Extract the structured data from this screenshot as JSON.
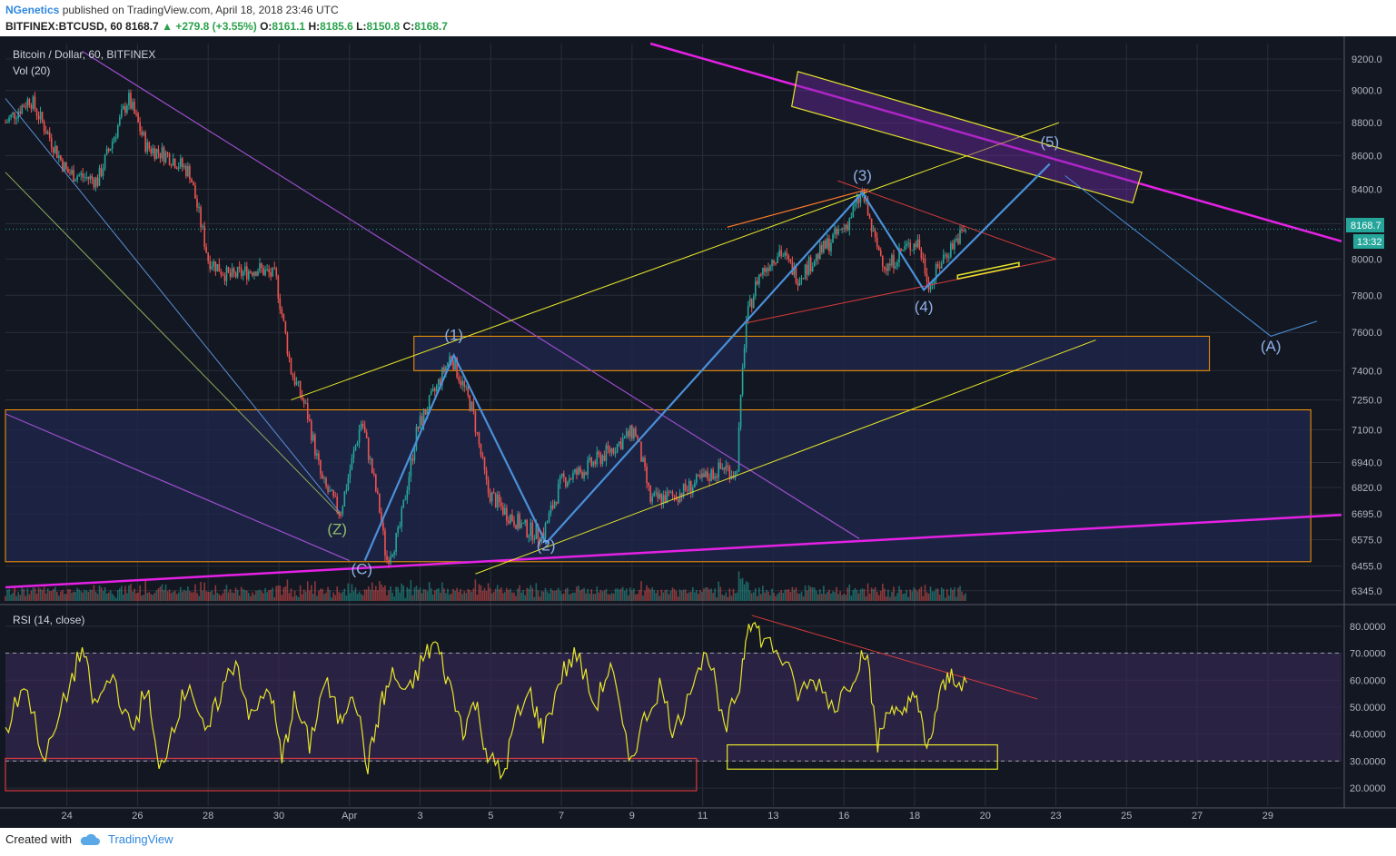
{
  "header": {
    "publisher": "NGenetics",
    "published_text": "published on TradingView.com, April 18, 2018 23:46 UTC",
    "symbol": "BITFINEX:BTCUSD, 60",
    "last": "8168.7",
    "change": "+279.8 (+3.55%)",
    "o_label": "O:",
    "o_value": "8161.1",
    "h_label": "H:",
    "h_value": "8185.6",
    "l_label": "L:",
    "l_value": "8150.8",
    "c_label": "C:",
    "c_value": "8168.7"
  },
  "legend": {
    "main": "Bitcoin / Dollar, 60, BITFINEX",
    "vol": "Vol (20)",
    "rsi": "RSI (14, close)"
  },
  "price_tag": {
    "value": "8168.7",
    "countdown": "13:32"
  },
  "footer": {
    "created_with": "Created with",
    "brand": "TradingView"
  },
  "colors": {
    "background": "#131722",
    "grid": "#2a2e39",
    "candle_up": "#26a69a",
    "candle_down": "#ef5350",
    "wave": "#4a90d9",
    "trend_magenta": "#e621e6",
    "channel_yellow": "#e6e62a",
    "zone_fill": "#1e2648",
    "zone_border": "#ff9800",
    "rsi_line": "#e6e62a",
    "rsi_band": "#3a2a5a",
    "price_tag": "#26a69a"
  },
  "chart_data": [
    {
      "type": "candlestick",
      "title": "Bitcoin / Dollar, 60, BITFINEX",
      "x_ticks": [
        "24",
        "26",
        "28",
        "30",
        "Apr",
        "3",
        "5",
        "7",
        "9",
        "11",
        "13",
        "16",
        "18",
        "20",
        "23",
        "25",
        "27",
        "29"
      ],
      "y_ticks": [
        6345.0,
        6455.0,
        6575.0,
        6695.0,
        6820.0,
        6940.0,
        7100.0,
        7250.0,
        7400.0,
        7600.0,
        7800.0,
        8000.0,
        8200.0,
        8400.0,
        8600.0,
        8800.0,
        9000.0,
        9200.0
      ],
      "y_scale": "log",
      "ylim": [
        6300,
        9300
      ],
      "last_price": 8168.7,
      "price_path": [
        {
          "x": 0.0,
          "y": 8800
        },
        {
          "x": 0.8,
          "y": 8950
        },
        {
          "x": 2.0,
          "y": 8500
        },
        {
          "x": 3.0,
          "y": 8450
        },
        {
          "x": 4.0,
          "y": 8950
        },
        {
          "x": 4.6,
          "y": 8650
        },
        {
          "x": 5.3,
          "y": 8600
        },
        {
          "x": 6.0,
          "y": 8500
        },
        {
          "x": 6.6,
          "y": 8000
        },
        {
          "x": 7.3,
          "y": 7900
        },
        {
          "x": 8.2,
          "y": 7950
        },
        {
          "x": 8.8,
          "y": 7900
        },
        {
          "x": 9.3,
          "y": 7400
        },
        {
          "x": 9.8,
          "y": 7200
        },
        {
          "x": 10.3,
          "y": 6850
        },
        {
          "x": 10.9,
          "y": 6700
        },
        {
          "x": 11.6,
          "y": 7150
        },
        {
          "x": 12.2,
          "y": 6700
        },
        {
          "x": 12.4,
          "y": 6480
        },
        {
          "x": 12.8,
          "y": 6600
        },
        {
          "x": 13.4,
          "y": 7100
        },
        {
          "x": 14.0,
          "y": 7300
        },
        {
          "x": 14.5,
          "y": 7480
        },
        {
          "x": 15.2,
          "y": 7200
        },
        {
          "x": 15.7,
          "y": 6800
        },
        {
          "x": 16.3,
          "y": 6700
        },
        {
          "x": 17.0,
          "y": 6620
        },
        {
          "x": 17.5,
          "y": 6600
        },
        {
          "x": 18.1,
          "y": 6850
        },
        {
          "x": 18.8,
          "y": 6900
        },
        {
          "x": 19.7,
          "y": 7000
        },
        {
          "x": 20.5,
          "y": 7100
        },
        {
          "x": 21.0,
          "y": 6760
        },
        {
          "x": 21.8,
          "y": 6780
        },
        {
          "x": 22.6,
          "y": 6850
        },
        {
          "x": 23.4,
          "y": 6920
        },
        {
          "x": 23.8,
          "y": 6880
        },
        {
          "x": 24.1,
          "y": 7650
        },
        {
          "x": 24.5,
          "y": 7900
        },
        {
          "x": 25.2,
          "y": 8050
        },
        {
          "x": 25.8,
          "y": 7900
        },
        {
          "x": 26.6,
          "y": 8050
        },
        {
          "x": 27.4,
          "y": 8200
        },
        {
          "x": 27.9,
          "y": 8380
        },
        {
          "x": 28.3,
          "y": 8100
        },
        {
          "x": 28.7,
          "y": 7950
        },
        {
          "x": 29.2,
          "y": 8050
        },
        {
          "x": 29.7,
          "y": 8100
        },
        {
          "x": 30.1,
          "y": 7850
        },
        {
          "x": 30.5,
          "y": 8000
        },
        {
          "x": 31.0,
          "y": 8120
        },
        {
          "x": 31.3,
          "y": 8168.7
        }
      ],
      "wave_labels": [
        {
          "label": "(Z)",
          "x": 10.8,
          "y": 6600
        },
        {
          "label": "(C)",
          "x": 11.6,
          "y": 6420
        },
        {
          "label": "(1)",
          "x": 14.6,
          "y": 7560
        },
        {
          "label": "(2)",
          "x": 17.6,
          "y": 6525
        },
        {
          "label": "(3)",
          "x": 27.9,
          "y": 8450
        },
        {
          "label": "(4)",
          "x": 29.9,
          "y": 7710
        },
        {
          "label": "(5)",
          "x": 34.0,
          "y": 8650
        },
        {
          "label": "(A)",
          "x": 41.2,
          "y": 7500
        }
      ],
      "wave_path": [
        {
          "x": 11.7,
          "y": 6480
        },
        {
          "x": 14.6,
          "y": 7480
        },
        {
          "x": 17.6,
          "y": 6560
        },
        {
          "x": 27.9,
          "y": 8380
        },
        {
          "x": 29.9,
          "y": 7830
        },
        {
          "x": 34.0,
          "y": 8550
        }
      ],
      "projection_path": [
        {
          "x": 34.5,
          "y": 8480
        },
        {
          "x": 41.2,
          "y": 7580
        },
        {
          "x": 42.7,
          "y": 7660
        }
      ],
      "zones": [
        {
          "from": 7400,
          "to": 7580,
          "x_start": 13.3,
          "x_end": 39.2
        },
        {
          "from": 6475,
          "to": 7200,
          "x_start": 0.0,
          "x_end": 42.5
        }
      ],
      "volume_series": "Vol (20)"
    },
    {
      "type": "line",
      "title": "RSI (14, close)",
      "y_ticks": [
        20.0,
        30.0,
        40.0,
        50.0,
        60.0,
        70.0,
        80.0
      ],
      "ylim": [
        16,
        86
      ],
      "bands": [
        30,
        70
      ],
      "series": [
        {
          "values_x": [
            0.0,
            0.6,
            1.3,
            2.0,
            2.5,
            2.9,
            3.5,
            4.1,
            4.6,
            5.0,
            5.5,
            6.0,
            6.5,
            7.0,
            7.5,
            8.0,
            8.6,
            9.0,
            9.4,
            9.9,
            10.4,
            10.9,
            11.3,
            11.8,
            12.2,
            12.6,
            13.1,
            13.6,
            14.0,
            14.4,
            14.9,
            15.3,
            15.7,
            16.2,
            16.6,
            17.1,
            17.5,
            18.1,
            18.6,
            19.2,
            19.7,
            20.3,
            20.8,
            21.3,
            21.8,
            22.4,
            22.9,
            23.4,
            23.9,
            24.2,
            24.6,
            25.2,
            25.8,
            26.4,
            27.0,
            27.6,
            28.0,
            28.4,
            28.8,
            29.2,
            29.6,
            30.0,
            30.4,
            30.8,
            31.3
          ],
          "values": [
            40,
            60,
            30,
            55,
            72,
            50,
            62,
            40,
            58,
            25,
            45,
            60,
            38,
            55,
            68,
            45,
            58,
            30,
            52,
            36,
            60,
            44,
            58,
            28,
            50,
            62,
            54,
            68,
            74,
            60,
            42,
            52,
            32,
            24,
            45,
            55,
            40,
            62,
            70,
            50,
            66,
            30,
            45,
            58,
            40,
            62,
            70,
            40,
            58,
            84,
            76,
            70,
            55,
            60,
            50,
            62,
            72,
            36,
            52,
            44,
            58,
            32,
            54,
            62,
            59
          ]
        }
      ]
    }
  ]
}
